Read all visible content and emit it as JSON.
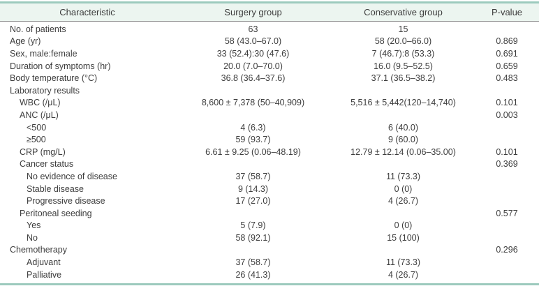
{
  "table": {
    "columns": [
      {
        "label": "Characteristic"
      },
      {
        "label": "Surgery group"
      },
      {
        "label": "Conservative group"
      },
      {
        "label": "P-value"
      }
    ],
    "rows": [
      {
        "label": "No. of patients",
        "indent": 0,
        "surgery": "63",
        "conservative": "15",
        "p": ""
      },
      {
        "label": "Age (yr)",
        "indent": 0,
        "surgery": "58 (43.0–67.0)",
        "conservative": "58 (20.0–66.0)",
        "p": "0.869"
      },
      {
        "label": "Sex, male:female",
        "indent": 0,
        "surgery": "33 (52.4):30 (47.6)",
        "conservative": "7 (46.7):8 (53.3)",
        "p": "0.691"
      },
      {
        "label": "Duration of symptoms (hr)",
        "indent": 0,
        "surgery": "20.0 (7.0–70.0)",
        "conservative": "16.0 (9.5–52.5)",
        "p": "0.659"
      },
      {
        "label": "Body temperature (°C)",
        "indent": 0,
        "surgery": "36.8 (36.4–37.6)",
        "conservative": "37.1 (36.5–38.2)",
        "p": "0.483"
      },
      {
        "label": "Laboratory results",
        "indent": 0,
        "surgery": "",
        "conservative": "",
        "p": ""
      },
      {
        "label": "WBC (/μL)",
        "indent": 1,
        "surgery": "8,600 ± 7,378 (50–40,909)",
        "conservative": "5,516 ± 5,442(120–14,740)",
        "p": "0.101"
      },
      {
        "label": "ANC (/μL)",
        "indent": 1,
        "surgery": "",
        "conservative": "",
        "p": "0.003"
      },
      {
        "label": "<500",
        "indent": 2,
        "surgery": "4 (6.3)",
        "conservative": "6 (40.0)",
        "p": ""
      },
      {
        "label": "≥500",
        "indent": 2,
        "surgery": "59 (93.7)",
        "conservative": "9 (60.0)",
        "p": ""
      },
      {
        "label": "CRP (mg/L)",
        "indent": 1,
        "surgery": "6.61 ± 9.25 (0.06–48.19)",
        "conservative": "12.79 ± 12.14 (0.06–35.00)",
        "p": "0.101"
      },
      {
        "label": "Cancer status",
        "indent": 1,
        "surgery": "",
        "conservative": "",
        "p": "0.369"
      },
      {
        "label": "No evidence of disease",
        "indent": 2,
        "surgery": "37 (58.7)",
        "conservative": "11 (73.3)",
        "p": ""
      },
      {
        "label": "Stable disease",
        "indent": 2,
        "surgery": "9 (14.3)",
        "conservative": "0 (0)",
        "p": ""
      },
      {
        "label": "Progressive disease",
        "indent": 2,
        "surgery": "17 (27.0)",
        "conservative": "4 (26.7)",
        "p": ""
      },
      {
        "label": "Peritoneal seeding",
        "indent": 1,
        "surgery": "",
        "conservative": "",
        "p": "0.577"
      },
      {
        "label": "Yes",
        "indent": 2,
        "surgery": "5 (7.9)",
        "conservative": "0 (0)",
        "p": ""
      },
      {
        "label": "No",
        "indent": 2,
        "surgery": "58 (92.1)",
        "conservative": "15 (100)",
        "p": ""
      },
      {
        "label": "Chemotherapy",
        "indent": 0,
        "surgery": "",
        "conservative": "",
        "p": "0.296"
      },
      {
        "label": "Adjuvant",
        "indent": 2,
        "surgery": "37 (58.7)",
        "conservative": "11 (73.3)",
        "p": ""
      },
      {
        "label": "Palliative",
        "indent": 2,
        "surgery": "26 (41.3)",
        "conservative": "4 (26.7)",
        "p": ""
      }
    ],
    "colors": {
      "accent_teal": "#9ccabd",
      "header_bg": "#ecf5f0",
      "header_rule": "#8c8c8c",
      "text": "#3d3d3d"
    }
  }
}
